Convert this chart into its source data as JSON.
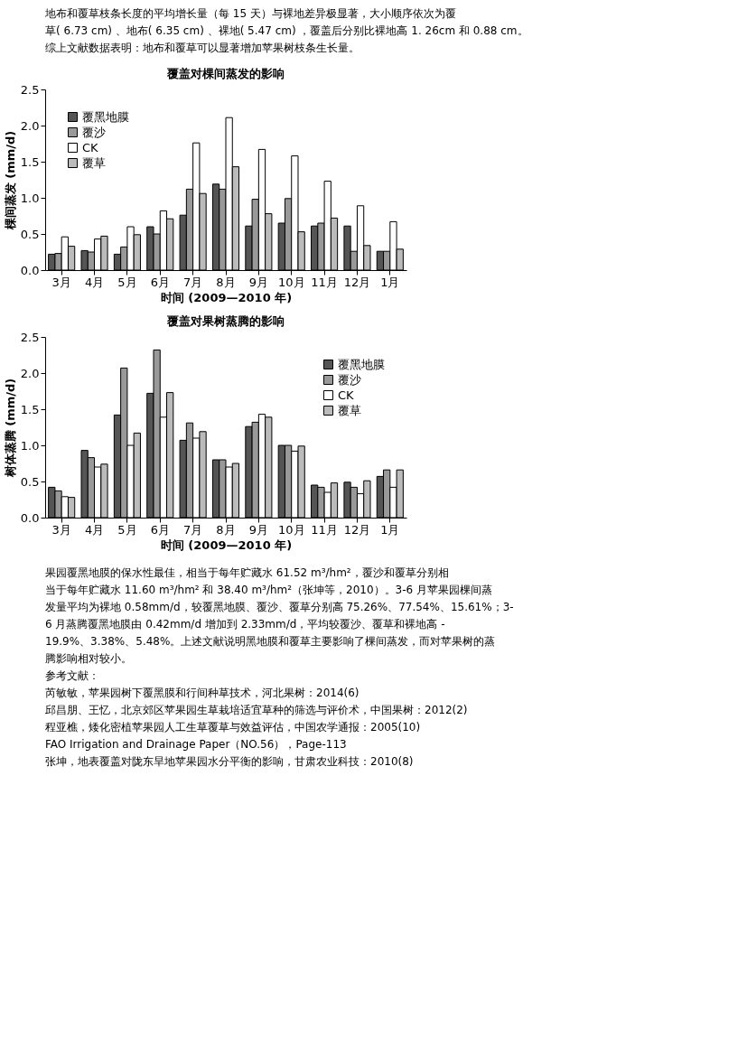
{
  "chart_data": [
    {
      "type": "bar",
      "title": "覆盖对棵间蒸发的影响",
      "xlabel": "时间 (2009—2010 年)",
      "ylabel": "棵间蒸发 (mm/d)",
      "annotations": [
        "地布和覆草枝条长度的平均增长量（每 15 天）与裸地差异极显著，大小顺序依次为覆",
        "草( 6.73 cm) 、地布( 6.35 cm) 、裸地( 5.47 cm) ，覆盖后分别比裸地高 1. 26cm 和 0.88 cm。",
        "综上文献数据表明：地布和覆草可以显著增加苹果树枝条生长量。"
      ],
      "categories": [
        "3月",
        "4月",
        "5月",
        "6月",
        "7月",
        "8月",
        "9月",
        "10月",
        "11月",
        "12月",
        "1月"
      ],
      "series": [
        {
          "name": "覆黑地膜",
          "color": "#555555",
          "values": [
            0.22,
            0.27,
            0.22,
            0.6,
            0.76,
            1.19,
            0.61,
            0.65,
            0.61,
            0.61,
            0.26
          ]
        },
        {
          "name": "覆沙",
          "color": "#999999",
          "values": [
            0.23,
            0.25,
            0.32,
            0.5,
            1.12,
            1.12,
            0.98,
            0.99,
            0.65,
            0.26,
            0.26
          ]
        },
        {
          "name": "CK",
          "color": "#ffffff",
          "values": [
            0.46,
            0.43,
            0.6,
            0.82,
            1.76,
            2.11,
            1.67,
            1.58,
            1.23,
            0.89,
            0.67
          ]
        },
        {
          "name": "覆草",
          "color": "#bbbbbb",
          "values": [
            0.33,
            0.47,
            0.49,
            0.71,
            1.06,
            1.43,
            0.78,
            0.53,
            0.72,
            0.34,
            0.29
          ]
        }
      ],
      "ylim": [
        0,
        2.5
      ],
      "yticks": [
        {
          "value": 0,
          "label": "0.0"
        },
        0.5,
        {
          "value": 1,
          "label": "1.0"
        },
        1.5,
        {
          "value": 2,
          "label": "2.0"
        },
        2.5
      ],
      "legend": "top left",
      "grid": false
    },
    {
      "type": "bar",
      "title": "覆盖对果树蒸腾的影响",
      "xlabel": "时间 (2009—2010 年)",
      "ylabel": "树体蒸腾 (mm/d)",
      "annotations": [
        "果园覆黑地膜的保水性最佳，相当于每年贮藏水 61.52 m³/hm²，覆沙和覆草分别相",
        "当于每年贮藏水 11.60 m³/hm² 和 38.40 m³/hm²（张坤等，2010）。3-6 月苹果园棵间蒸",
        "发量平均为裸地 0.58mm/d，较覆黑地膜、覆沙、覆草分别高 75.26%、77.54%、15.61%；3-",
        "6 月蒸腾覆黑地膜由 0.42mm/d 增加到 2.33mm/d，平均较覆沙、覆草和裸地高 -",
        "19.9%、3.38%、5.48%。上述文献说明黑地膜和覆草主要影响了棵间蒸发，而对苹果树的蒸",
        "腾影响相对较小。",
        "参考文献：",
        "芮敏敏，苹果园树下覆黑膜和行间种草技术，河北果树：2014(6)",
        "邱昌朋、王忆，北京郊区苹果园生草栽培适宜草种的筛选与评价术，中国果树：2012(2)",
        "程亚樵，矮化密植苹果园人工生草覆草与效益评估，中国农学通报：2005(10)",
        "FAO Irrigation and Drainage Paper（NO.56），Page-113",
        "张坤，地表覆盖对陇东旱地苹果园水分平衡的影响，甘肃农业科技：2010(8)"
      ],
      "categories": [
        "3月",
        "4月",
        "5月",
        "6月",
        "7月",
        "8月",
        "9月",
        "10月",
        "11月",
        "12月",
        "1月"
      ],
      "series": [
        {
          "name": "覆黑地膜",
          "color": "#555555",
          "values": [
            0.42,
            0.93,
            1.42,
            1.72,
            1.07,
            0.8,
            1.26,
            1.0,
            0.45,
            0.49,
            0.57
          ]
        },
        {
          "name": "覆沙",
          "color": "#999999",
          "values": [
            0.37,
            0.83,
            2.07,
            2.32,
            1.31,
            0.8,
            1.32,
            1.0,
            0.42,
            0.42,
            0.66
          ]
        },
        {
          "name": "CK",
          "color": "#ffffff",
          "values": [
            0.29,
            0.7,
            1.0,
            1.39,
            1.1,
            0.7,
            1.43,
            0.92,
            0.35,
            0.33,
            0.42
          ]
        },
        {
          "name": "覆草",
          "color": "#bbbbbb",
          "values": [
            0.28,
            0.74,
            1.17,
            1.73,
            1.19,
            0.75,
            1.39,
            0.99,
            0.48,
            0.51,
            0.66
          ]
        }
      ],
      "ylim": [
        0,
        2.5
      ],
      "yticks": [
        {
          "value": 0,
          "label": "0.0"
        },
        0.5,
        {
          "value": 1,
          "label": "1.0"
        },
        1.5,
        {
          "value": 2,
          "label": "2.0"
        },
        2.5
      ],
      "legend": "top right",
      "grid": false
    }
  ]
}
